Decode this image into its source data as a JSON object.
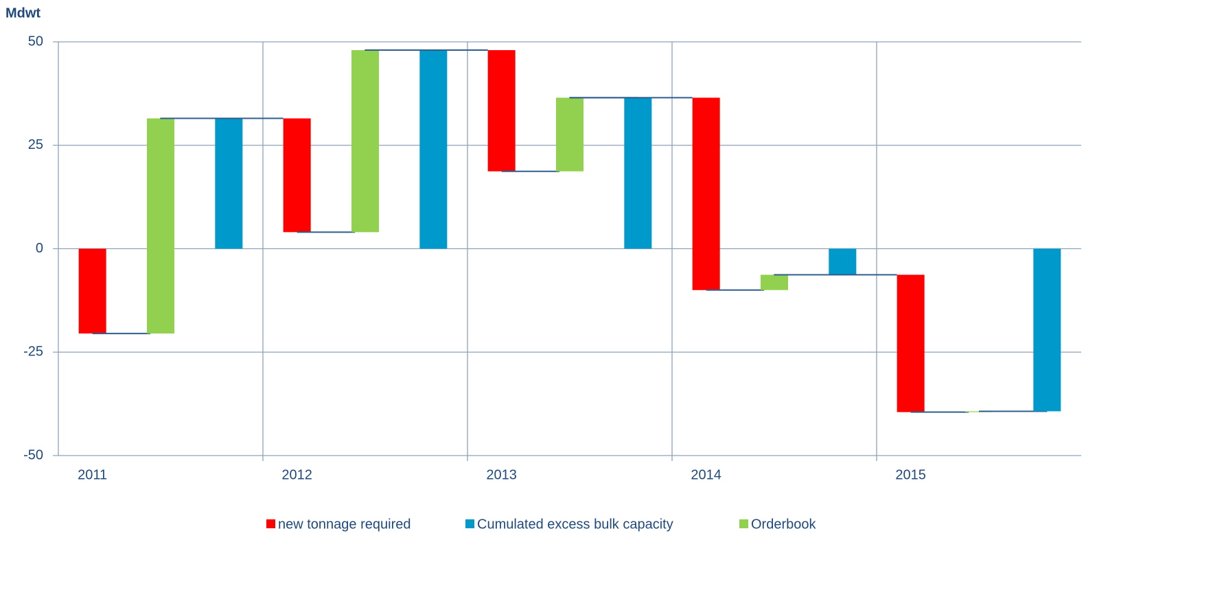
{
  "chart_data": {
    "type": "waterfall",
    "y_label": "Mdwt",
    "categories": [
      "2011",
      "2012",
      "2013",
      "2014",
      "2015"
    ],
    "series": [
      {
        "name": "new tonnage required",
        "color": "#ff0000",
        "values": [
          -20.5,
          -27.5,
          -29.3,
          -46.5,
          -33.2
        ]
      },
      {
        "name": "Cumulated excess bulk capacity",
        "color": "#0099cc",
        "values": [
          31.5,
          48,
          36.5,
          -6.3,
          -39.3
        ]
      },
      {
        "name": "Orderbook",
        "color": "#92d050",
        "values": [
          52,
          44,
          17.8,
          3.7,
          0.2
        ]
      }
    ],
    "ylim": [
      -50,
      50
    ],
    "yticks": [
      -50,
      -25,
      0,
      25,
      50
    ],
    "grid": true
  }
}
